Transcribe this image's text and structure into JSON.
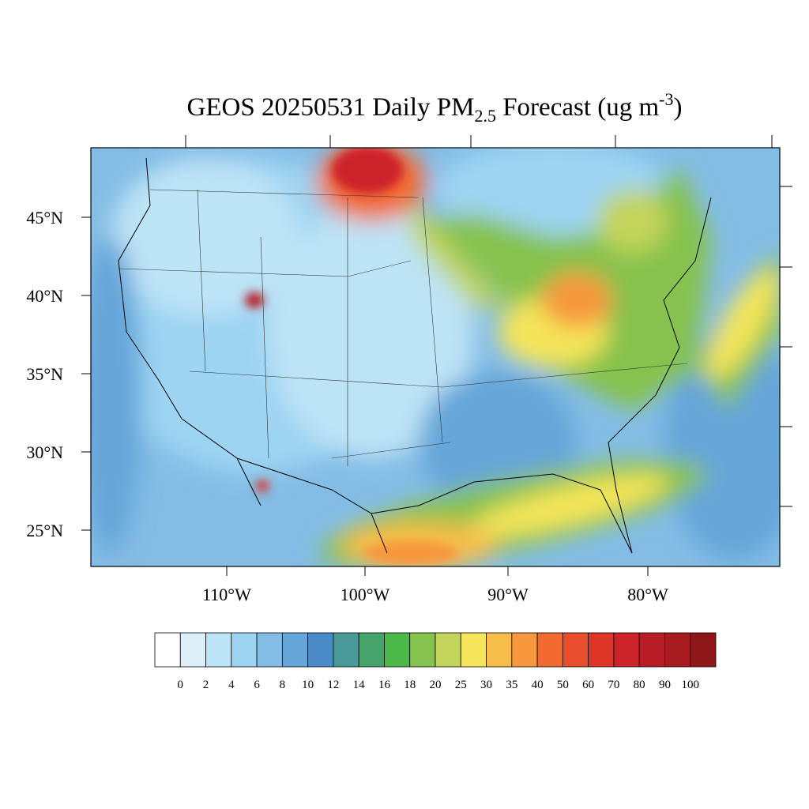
{
  "header": {
    "title": {
      "prefix": "GEOS 20250531 Daily PM",
      "subscript": "2.5",
      "middle": " Forecast (ug m",
      "superscript": "-3",
      "suffix": ")"
    }
  },
  "map": {
    "lat_labels": [
      "45°N",
      "40°N",
      "35°N",
      "30°N",
      "25°N"
    ],
    "lon_labels": [
      "110°W",
      "100°W",
      "90°W",
      "80°W"
    ]
  },
  "colorbar": {
    "labels": [
      "0",
      "2",
      "4",
      "6",
      "8",
      "10",
      "12",
      "14",
      "16",
      "18",
      "20",
      "25",
      "30",
      "35",
      "40",
      "50",
      "60",
      "70",
      "80",
      "90",
      "100"
    ],
    "colors": [
      "#ffffff",
      "#ddf0fa",
      "#bde3f6",
      "#9dd4f2",
      "#83bde5",
      "#66a6d9",
      "#4a8bc8",
      "#4a9a9a",
      "#45a36c",
      "#4db84a",
      "#86c24e",
      "#c3d45a",
      "#f4e55a",
      "#f7bd4a",
      "#f7973e",
      "#f26a30",
      "#e84e2c",
      "#dd3528",
      "#cc2229",
      "#b71d24",
      "#a81b20",
      "#8f1719"
    ]
  }
}
